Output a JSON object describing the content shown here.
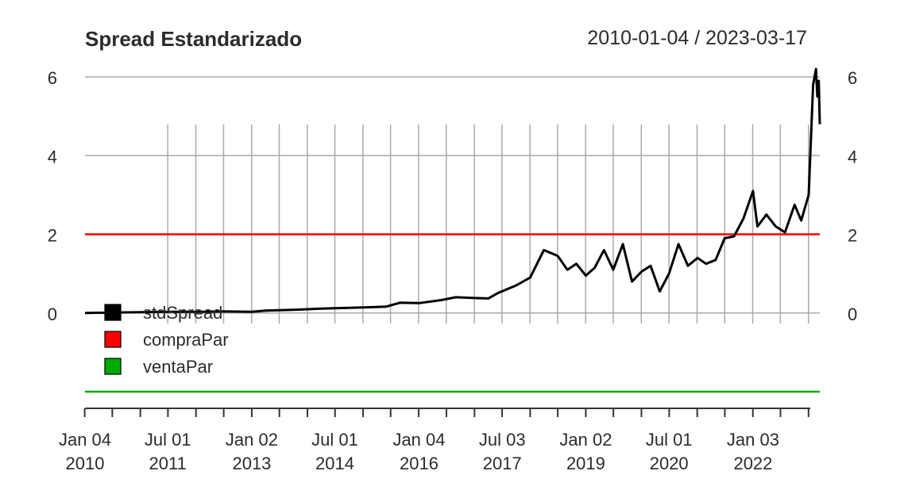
{
  "chart_data": {
    "type": "line",
    "title": "Spread Estandarizado",
    "date_range": "2010-01-04 / 2023-03-17",
    "x_range": [
      "2010-01-04",
      "2023-03-17"
    ],
    "ylim": [
      -2,
      6
    ],
    "y_ticks": [
      0,
      2,
      4,
      6
    ],
    "x_ticks": [
      {
        "date": "2010-01-04",
        "label": [
          "Jan 04",
          "2010"
        ]
      },
      {
        "date": "2011-07-01",
        "label": [
          "Jul 01",
          "2011"
        ]
      },
      {
        "date": "2013-01-02",
        "label": [
          "Jan 02",
          "2013"
        ]
      },
      {
        "date": "2014-07-01",
        "label": [
          "Jul 01",
          "2014"
        ]
      },
      {
        "date": "2016-01-04",
        "label": [
          "Jan 04",
          "2016"
        ]
      },
      {
        "date": "2017-07-03",
        "label": [
          "Jul 03",
          "2017"
        ]
      },
      {
        "date": "2019-01-02",
        "label": [
          "Jan 02",
          "2019"
        ]
      },
      {
        "date": "2020-07-01",
        "label": [
          "Jul 01",
          "2020"
        ]
      },
      {
        "date": "2022-01-03",
        "label": [
          "Jan 03",
          "2022"
        ]
      }
    ],
    "grid": true,
    "legend_position": "bottom-left",
    "series": [
      {
        "name": "stdSpread",
        "color": "#000000",
        "points": [
          [
            "2010-01-04",
            0.0
          ],
          [
            "2010-06-01",
            0.01
          ],
          [
            "2011-01-03",
            0.02
          ],
          [
            "2011-07-01",
            0.03
          ],
          [
            "2012-01-03",
            0.03
          ],
          [
            "2012-07-02",
            0.04
          ],
          [
            "2013-01-02",
            0.03
          ],
          [
            "2013-04-01",
            0.06
          ],
          [
            "2013-10-01",
            0.08
          ],
          [
            "2014-04-01",
            0.11
          ],
          [
            "2014-07-01",
            0.12
          ],
          [
            "2015-01-02",
            0.14
          ],
          [
            "2015-06-01",
            0.16
          ],
          [
            "2015-09-01",
            0.26
          ],
          [
            "2016-01-04",
            0.25
          ],
          [
            "2016-06-01",
            0.33
          ],
          [
            "2016-09-01",
            0.4
          ],
          [
            "2017-01-03",
            0.38
          ],
          [
            "2017-04-03",
            0.37
          ],
          [
            "2017-06-01",
            0.5
          ],
          [
            "2017-10-02",
            0.7
          ],
          [
            "2018-01-02",
            0.9
          ],
          [
            "2018-04-02",
            1.6
          ],
          [
            "2018-07-02",
            1.45
          ],
          [
            "2018-09-03",
            1.1
          ],
          [
            "2018-11-01",
            1.25
          ],
          [
            "2019-01-02",
            0.95
          ],
          [
            "2019-03-01",
            1.15
          ],
          [
            "2019-05-01",
            1.6
          ],
          [
            "2019-07-01",
            1.1
          ],
          [
            "2019-09-02",
            1.75
          ],
          [
            "2019-11-01",
            0.8
          ],
          [
            "2020-01-02",
            1.05
          ],
          [
            "2020-03-02",
            1.2
          ],
          [
            "2020-05-01",
            0.55
          ],
          [
            "2020-07-01",
            1.0
          ],
          [
            "2020-09-01",
            1.75
          ],
          [
            "2020-11-02",
            1.2
          ],
          [
            "2021-01-04",
            1.4
          ],
          [
            "2021-03-01",
            1.25
          ],
          [
            "2021-05-03",
            1.35
          ],
          [
            "2021-07-01",
            1.9
          ],
          [
            "2021-09-01",
            1.95
          ],
          [
            "2021-11-01",
            2.4
          ],
          [
            "2022-01-03",
            3.1
          ],
          [
            "2022-02-01",
            2.2
          ],
          [
            "2022-04-01",
            2.5
          ],
          [
            "2022-06-01",
            2.2
          ],
          [
            "2022-08-01",
            2.05
          ],
          [
            "2022-10-03",
            2.75
          ],
          [
            "2022-11-15",
            2.35
          ],
          [
            "2023-01-03",
            3.0
          ],
          [
            "2023-02-01",
            5.8
          ],
          [
            "2023-02-20",
            6.2
          ],
          [
            "2023-03-01",
            5.5
          ],
          [
            "2023-03-10",
            5.9
          ],
          [
            "2023-03-17",
            4.8
          ]
        ]
      },
      {
        "name": "compraPar",
        "color": "#ff0000",
        "constant": 2
      },
      {
        "name": "ventaPar",
        "color": "#00aa00",
        "constant": -2
      }
    ]
  }
}
